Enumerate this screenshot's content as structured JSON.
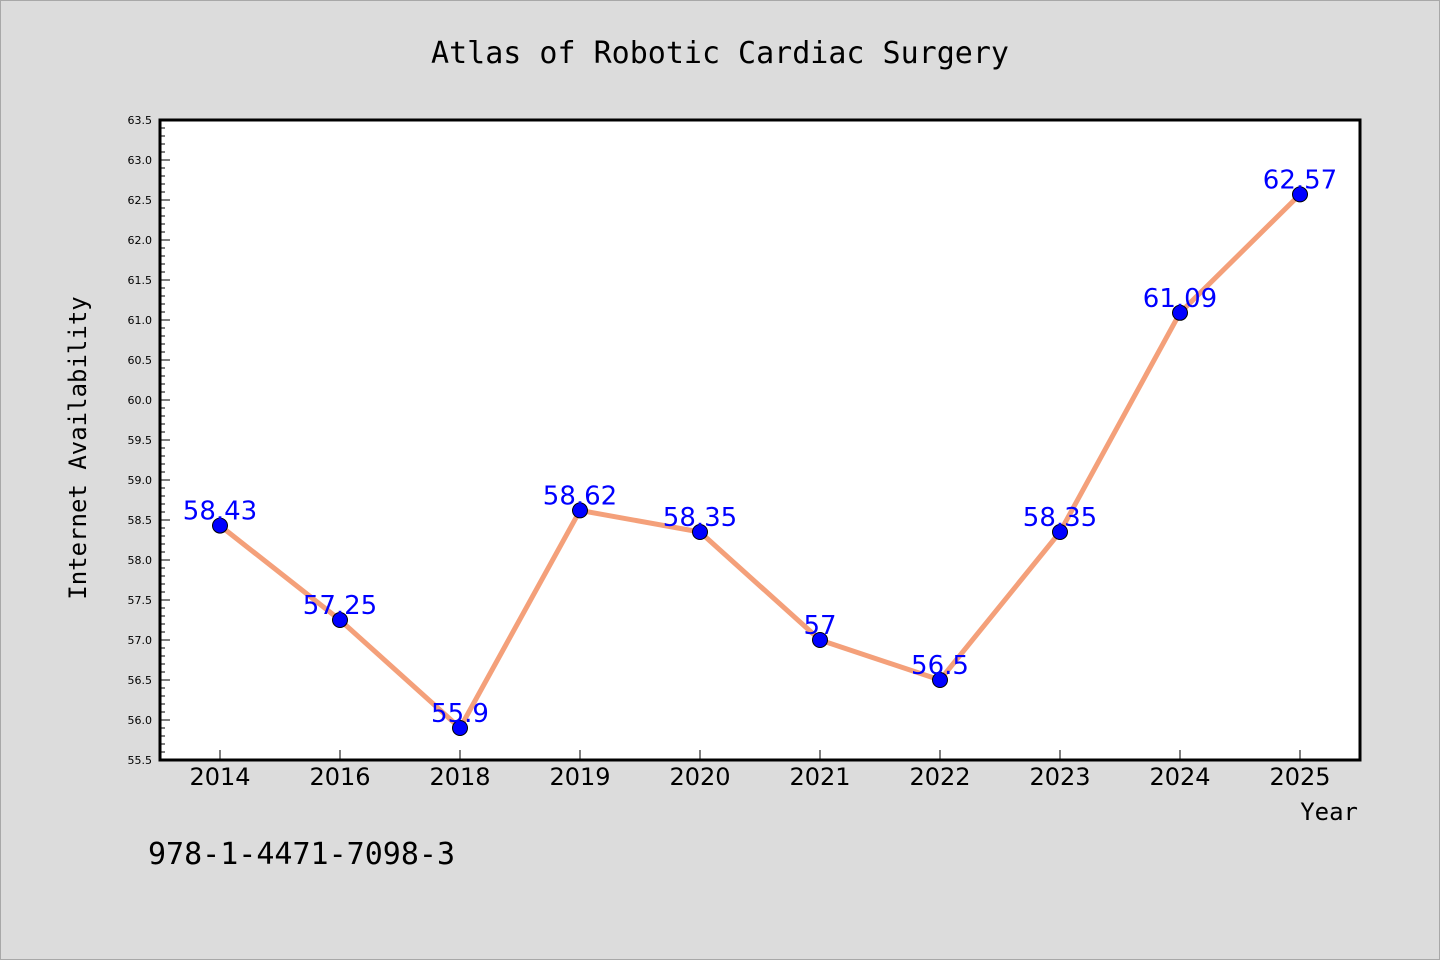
{
  "chart_data": {
    "type": "line",
    "title": "Atlas of Robotic Cardiac Surgery",
    "xlabel": "Year",
    "ylabel": "Internet Availability",
    "categories": [
      "2014",
      "2016",
      "2018",
      "2019",
      "2020",
      "2021",
      "2022",
      "2023",
      "2024",
      "2025"
    ],
    "series": [
      {
        "values": [
          58.43,
          57.25,
          55.9,
          58.62,
          58.35,
          57,
          56.5,
          58.35,
          61.09,
          62.57
        ],
        "labels": [
          "58.43",
          "57.25",
          "55.9",
          "58.62",
          "58.35",
          "57",
          "56.5",
          "58.35",
          "61.09",
          "62.57"
        ]
      }
    ],
    "ylim": [
      55.5,
      63.5
    ],
    "yticks": [
      "55.5",
      "56.0",
      "56.5",
      "57.0",
      "57.5",
      "58.0",
      "58.5",
      "59.0",
      "59.5",
      "60.0",
      "60.5",
      "61.0",
      "61.5",
      "62.0",
      "62.5",
      "63.0",
      "63.5"
    ],
    "grid": false,
    "colors": {
      "line": "#f4a07a",
      "marker": "#0000ff",
      "data_label": "#0000ff",
      "background": "#dcdcdc",
      "plot_background": "#ffffff"
    }
  },
  "footer_text": "978-1-4471-7098-3"
}
